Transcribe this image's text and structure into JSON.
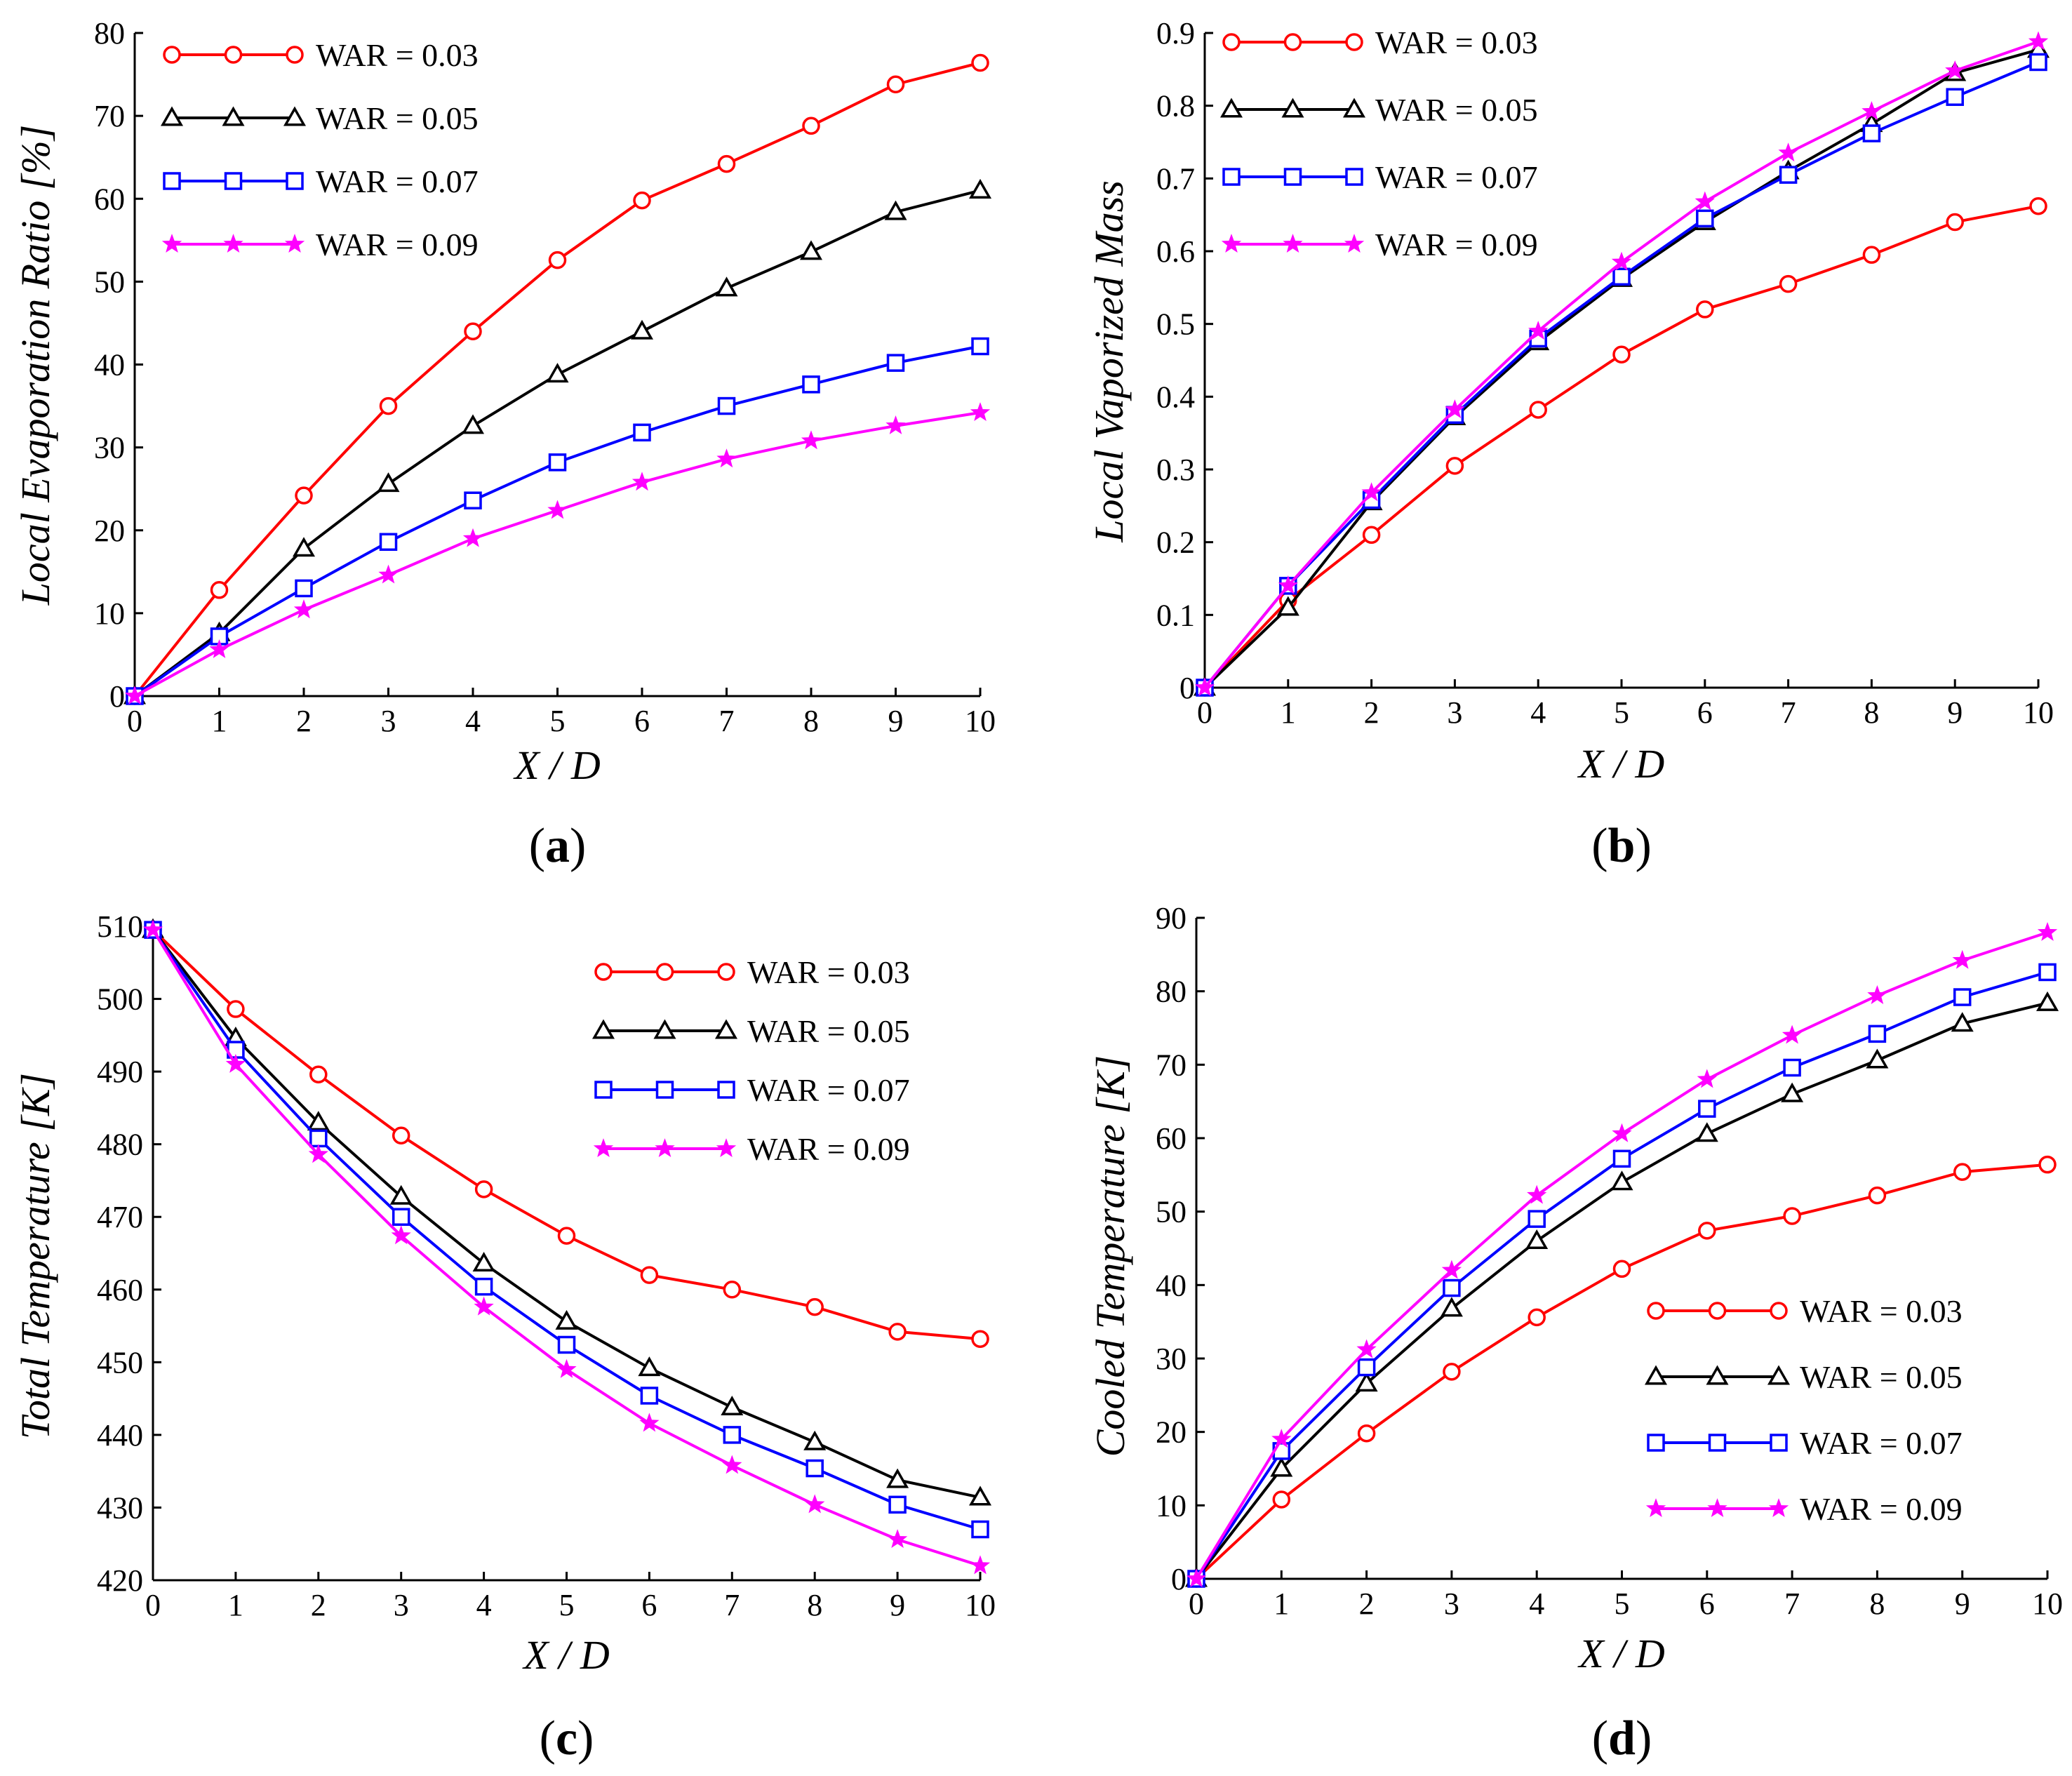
{
  "colors": {
    "WAR = 0.03": "#ff0000",
    "WAR = 0.05": "#000000",
    "WAR = 0.07": "#0000ff",
    "WAR = 0.09": "#ff00ff"
  },
  "chart_data": [
    {
      "type": "line",
      "panel_label": "a",
      "xlabel": "X / D",
      "ylabel": "Local Evaporation Ratio [%]",
      "x": [
        0,
        1,
        2,
        3,
        4,
        5,
        6,
        7,
        8,
        9,
        10
      ],
      "xlim": [
        0,
        10
      ],
      "ylim": [
        0,
        80
      ],
      "xticks": [
        "0",
        "1",
        "2",
        "3",
        "4",
        "5",
        "6",
        "7",
        "8",
        "9",
        "10"
      ],
      "yticks": [
        "0",
        "10",
        "20",
        "30",
        "40",
        "50",
        "60",
        "70",
        "80"
      ],
      "legend_position": "top-left",
      "series": [
        {
          "name": "WAR = 0.03",
          "marker": "circle",
          "values": [
            0,
            12.8,
            24.2,
            35.0,
            44.0,
            52.6,
            59.8,
            64.2,
            68.8,
            73.8,
            76.4
          ]
        },
        {
          "name": "WAR = 0.05",
          "marker": "triangle",
          "values": [
            0,
            7.6,
            17.8,
            25.6,
            32.6,
            38.8,
            44.0,
            49.2,
            53.6,
            58.4,
            61.0
          ]
        },
        {
          "name": "WAR = 0.07",
          "marker": "square",
          "values": [
            0,
            7.2,
            13.0,
            18.6,
            23.6,
            28.2,
            31.8,
            35.0,
            37.6,
            40.2,
            42.2
          ]
        },
        {
          "name": "WAR = 0.09",
          "marker": "star",
          "values": [
            0,
            5.6,
            10.4,
            14.6,
            19.0,
            22.4,
            25.8,
            28.6,
            30.8,
            32.6,
            34.2
          ]
        }
      ]
    },
    {
      "type": "line",
      "panel_label": "b",
      "xlabel": "X / D",
      "ylabel": "Local Vaporized Mass",
      "x": [
        0,
        1,
        2,
        3,
        4,
        5,
        6,
        7,
        8,
        9,
        10
      ],
      "xlim": [
        0,
        10
      ],
      "ylim": [
        0,
        0.9
      ],
      "xticks": [
        "0",
        "1",
        "2",
        "3",
        "4",
        "5",
        "6",
        "7",
        "8",
        "9",
        "10"
      ],
      "yticks": [
        "0",
        "0.1",
        "0.2",
        "0.3",
        "0.4",
        "0.5",
        "0.6",
        "0.7",
        "0.8",
        "0.9"
      ],
      "legend_position": "top-left",
      "series": [
        {
          "name": "WAR = 0.03",
          "marker": "circle",
          "values": [
            0,
            0.12,
            0.21,
            0.305,
            0.382,
            0.458,
            0.52,
            0.555,
            0.595,
            0.64,
            0.662
          ]
        },
        {
          "name": "WAR = 0.05",
          "marker": "triangle",
          "values": [
            0,
            0.11,
            0.255,
            0.372,
            0.475,
            0.562,
            0.64,
            0.71,
            0.775,
            0.845,
            0.877
          ]
        },
        {
          "name": "WAR = 0.07",
          "marker": "square",
          "values": [
            0,
            0.14,
            0.258,
            0.375,
            0.48,
            0.565,
            0.645,
            0.705,
            0.762,
            0.812,
            0.86
          ]
        },
        {
          "name": "WAR = 0.09",
          "marker": "star",
          "values": [
            0,
            0.14,
            0.268,
            0.382,
            0.49,
            0.585,
            0.668,
            0.735,
            0.792,
            0.848,
            0.888
          ]
        }
      ]
    },
    {
      "type": "line",
      "panel_label": "c",
      "xlabel": "X / D",
      "ylabel": "Total Temperature [K]",
      "x": [
        0,
        1,
        2,
        3,
        4,
        5,
        6,
        7,
        8,
        9,
        10
      ],
      "xlim": [
        0,
        10
      ],
      "ylim": [
        420,
        510
      ],
      "xticks": [
        "0",
        "1",
        "2",
        "3",
        "4",
        "5",
        "6",
        "7",
        "8",
        "9",
        "10"
      ],
      "yticks": [
        "420",
        "430",
        "440",
        "450",
        "460",
        "470",
        "480",
        "490",
        "500",
        "510"
      ],
      "legend_position": "top-right",
      "series": [
        {
          "name": "WAR = 0.03",
          "marker": "circle",
          "values": [
            509.5,
            498.6,
            489.6,
            481.2,
            473.8,
            467.4,
            462.0,
            460.0,
            457.6,
            454.2,
            453.2
          ]
        },
        {
          "name": "WAR = 0.05",
          "marker": "triangle",
          "values": [
            509.5,
            494.6,
            483.0,
            472.8,
            463.6,
            455.6,
            449.2,
            443.8,
            439.0,
            433.8,
            431.4
          ]
        },
        {
          "name": "WAR = 0.07",
          "marker": "square",
          "values": [
            509.5,
            493.0,
            480.8,
            470.0,
            460.4,
            452.4,
            445.4,
            440.0,
            435.4,
            430.4,
            427.0
          ]
        },
        {
          "name": "WAR = 0.09",
          "marker": "star",
          "values": [
            509.5,
            491.0,
            478.6,
            467.4,
            457.6,
            449.0,
            441.6,
            435.8,
            430.4,
            425.6,
            422.0
          ]
        }
      ]
    },
    {
      "type": "line",
      "panel_label": "d",
      "xlabel": "X / D",
      "ylabel": "Cooled Temperature [K]",
      "x": [
        0,
        1,
        2,
        3,
        4,
        5,
        6,
        7,
        8,
        9,
        10
      ],
      "xlim": [
        0,
        10
      ],
      "ylim": [
        0,
        90
      ],
      "xticks": [
        "0",
        "1",
        "2",
        "3",
        "4",
        "5",
        "6",
        "7",
        "8",
        "9",
        "10"
      ],
      "yticks": [
        "0",
        "10",
        "20",
        "30",
        "40",
        "50",
        "60",
        "70",
        "80",
        "90"
      ],
      "legend_position": "bottom-right",
      "series": [
        {
          "name": "WAR = 0.03",
          "marker": "circle",
          "values": [
            0,
            10.8,
            19.8,
            28.2,
            35.6,
            42.2,
            47.4,
            49.4,
            52.2,
            55.4,
            56.4
          ]
        },
        {
          "name": "WAR = 0.05",
          "marker": "triangle",
          "values": [
            0,
            15.0,
            26.6,
            36.8,
            46.0,
            54.0,
            60.6,
            66.0,
            70.6,
            75.6,
            78.4
          ]
        },
        {
          "name": "WAR = 0.07",
          "marker": "square",
          "values": [
            0,
            17.4,
            28.8,
            39.6,
            49.0,
            57.2,
            64.0,
            69.6,
            74.2,
            79.2,
            82.6
          ]
        },
        {
          "name": "WAR = 0.09",
          "marker": "star",
          "values": [
            0,
            19.0,
            31.2,
            42.0,
            52.2,
            60.6,
            68.0,
            74.0,
            79.4,
            84.2,
            88.0
          ]
        }
      ]
    }
  ]
}
